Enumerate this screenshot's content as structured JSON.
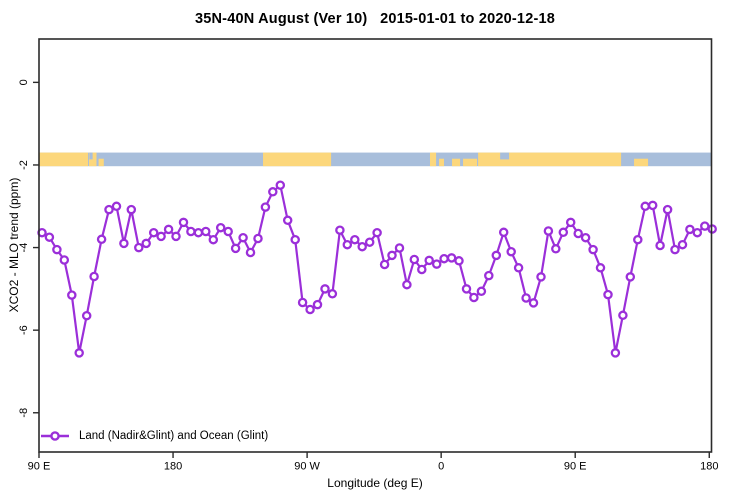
{
  "title": "35N-40N August (Ver 10)   2015-01-01 to 2020-12-18",
  "y_axis": {
    "label": "XCO2 - MLO trend (ppm)"
  },
  "x_axis": {
    "label": "Longitude (deg E)"
  },
  "legend": {
    "label": "Land (Nadir&Glint) and Ocean (Glint)",
    "marker": "open-circle-on-line"
  },
  "colors": {
    "line": "#9B2FD9",
    "marker_fill": "#FFFFFF",
    "ocean": "#A8BEDB",
    "land": "#FCD77C",
    "axis": "#2B2B2B",
    "text": "#000000",
    "background": "#FFFFFF"
  },
  "chart_data": {
    "type": "line",
    "title": "35N-40N August (Ver 10)   2015-01-01 to 2020-12-18",
    "xlabel": "Longitude (deg E)",
    "ylabel": "XCO2 - MLO trend (ppm)",
    "xlim": [
      90,
      541.5
    ],
    "ylim": [
      -8.95,
      1.05
    ],
    "x_tick_values": [
      90,
      180,
      270,
      360,
      450,
      540
    ],
    "x_tick_labels": [
      "90 E",
      "180",
      "90 W",
      "0",
      "90 E",
      "180"
    ],
    "y_tick_values": [
      0,
      -2,
      -4,
      -6,
      -8
    ],
    "y_tick_labels": [
      "0",
      "-2",
      "-4",
      "-6",
      "-8"
    ],
    "grid": false,
    "legend_position": "bottom-left",
    "series": [
      {
        "name": "Land (Nadir&Glint) and Ocean (Glint)",
        "lon_start": 92,
        "lon_step": 5,
        "values": [
          -3.64,
          -3.75,
          -4.05,
          -4.3,
          -5.15,
          -6.55,
          -5.65,
          -4.7,
          -3.8,
          -3.08,
          -3.0,
          -3.9,
          -3.08,
          -4.0,
          -3.9,
          -3.64,
          -3.73,
          -3.56,
          -3.73,
          -3.39,
          -3.61,
          -3.64,
          -3.61,
          -3.81,
          -3.52,
          -3.61,
          -4.02,
          -3.76,
          -4.12,
          -3.78,
          -3.02,
          -2.65,
          -2.49,
          -3.34,
          -3.81,
          -5.33,
          -5.5,
          -5.38,
          -5.0,
          -5.12,
          -3.58,
          -3.93,
          -3.81,
          -3.98,
          -3.87,
          -3.64,
          -4.41,
          -4.19,
          -4.01,
          -4.9,
          -4.29,
          -4.53,
          -4.31,
          -4.4,
          -4.27,
          -4.25,
          -4.32,
          -5.0,
          -5.21,
          -5.06,
          -4.68,
          -4.19,
          -3.63,
          -4.1,
          -4.49,
          -5.22,
          -5.34,
          -4.71,
          -3.6,
          -4.03,
          -3.63,
          -3.39,
          -3.66,
          -3.76,
          -4.05,
          -4.49,
          -5.14,
          -6.55,
          -5.64,
          -4.71,
          -3.81,
          -3.0,
          -2.98,
          -3.95,
          -3.08,
          -4.05,
          -3.93,
          -3.56,
          -3.64,
          -3.48,
          -3.55
        ]
      }
    ],
    "map_band": {
      "description": "land-ocean strip along 35N-40N",
      "value_top": -1.7,
      "value_bottom": -2.03,
      "land_segments": [
        {
          "from": 90.0,
          "to": 122.9,
          "part": "full"
        },
        {
          "from": 123.5,
          "to": 128.6,
          "part": "full"
        },
        {
          "from": 130.0,
          "to": 133.5,
          "part": "bottom"
        },
        {
          "from": 240.4,
          "to": 286.1,
          "part": "full"
        },
        {
          "from": 352.5,
          "to": 356.6,
          "part": "full"
        },
        {
          "from": 358.6,
          "to": 361.9,
          "part": "bottom"
        },
        {
          "from": 367.3,
          "to": 372.7,
          "part": "bottom"
        },
        {
          "from": 374.7,
          "to": 384.1,
          "part": "bottom"
        },
        {
          "from": 384.8,
          "to": 480.8,
          "part": "full"
        },
        {
          "from": 489.5,
          "to": 498.9,
          "part": "bottom"
        }
      ],
      "ocean_patches": [
        {
          "from": 123.8,
          "to": 126.0,
          "part": "top"
        },
        {
          "from": 399.6,
          "to": 405.6,
          "part": "top"
        }
      ]
    }
  }
}
